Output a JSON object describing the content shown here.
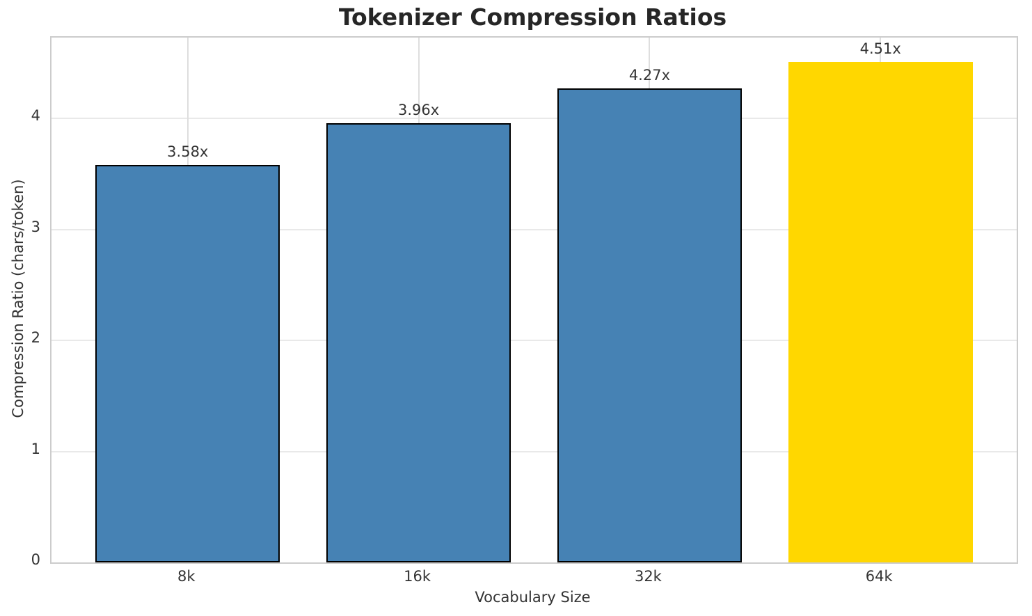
{
  "chart_data": {
    "type": "bar",
    "title": "Tokenizer Compression Ratios",
    "xlabel": "Vocabulary Size",
    "ylabel": "Compression Ratio (chars/token)",
    "categories": [
      "8k",
      "16k",
      "32k",
      "64k"
    ],
    "values": [
      3.58,
      3.96,
      4.27,
      4.51
    ],
    "bar_labels": [
      "3.58x",
      "3.96x",
      "4.27x",
      "4.51x"
    ],
    "bar_colors": [
      "#4682B4",
      "#4682B4",
      "#4682B4",
      "#FFD700"
    ],
    "bar_edge_colors": [
      "#000000",
      "#000000",
      "#000000",
      "none"
    ],
    "bar_width": 0.8,
    "yticks": [
      0,
      1,
      2,
      3,
      4
    ],
    "ylim": [
      0,
      4.73
    ],
    "xlim": [
      -0.59,
      3.59
    ],
    "grid": true,
    "legend_position": "none",
    "colors": {
      "bar_blue": "#4682B4",
      "bar_gold": "#FFD700",
      "grid_h": "#e9e9e9",
      "grid_v": "#dedede",
      "spine": "#cccccc",
      "title_text": "#262626",
      "tick_text": "#333333",
      "background": "#ffffff"
    }
  }
}
